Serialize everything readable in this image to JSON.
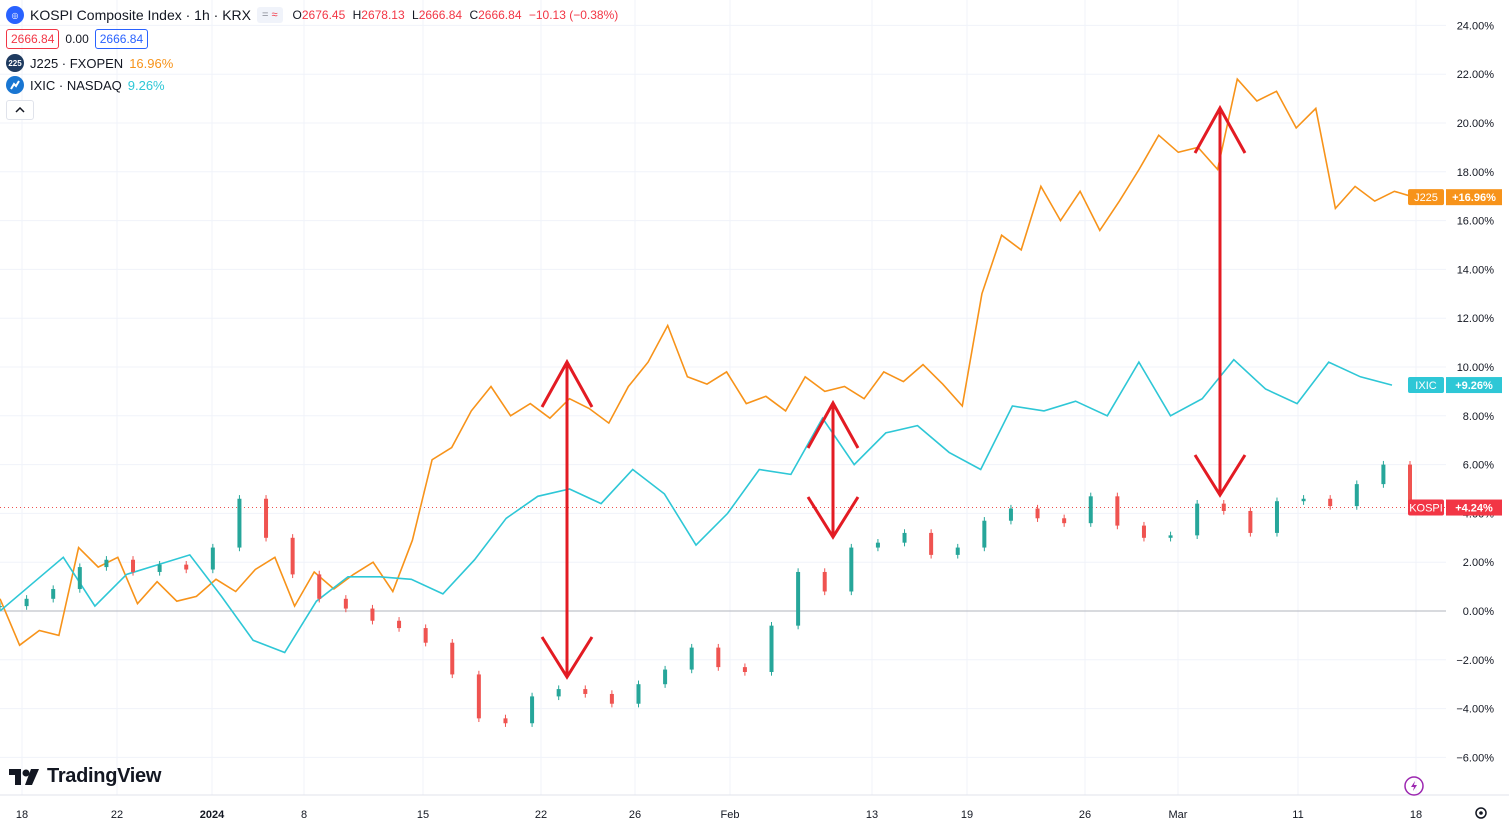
{
  "header": {
    "symbol_title": "KOSPI Composite Index · 1h · KRX",
    "ohlc": [
      {
        "k": "O",
        "v": "2676.45"
      },
      {
        "k": "H",
        "v": "2678.13"
      },
      {
        "k": "L",
        "v": "2666.84"
      },
      {
        "k": "C",
        "v": "2666.84"
      }
    ],
    "change": "−10.13 (−0.38%)",
    "bid": "2666.84",
    "spread": "0.00",
    "ask": "2666.84"
  },
  "compare": [
    {
      "badge": "225",
      "label": "J225 · FXOPEN",
      "value": "16.96%",
      "color": "#f7931a"
    },
    {
      "badge": "",
      "label": "IXIC · NASDAQ",
      "value": "9.26%",
      "color": "#2ec7d6"
    }
  ],
  "brand": "TradingView",
  "icons": {
    "collapse": "chevron-up-icon",
    "settings": "gear-icon",
    "alert": "lightning-icon",
    "logo": "tradingview-logo-icon"
  },
  "colors": {
    "kospi_up": "#26a69a",
    "kospi_down": "#ef5350",
    "j225": "#f7931a",
    "ixic": "#2ec7d6",
    "arrows": "#e31b23"
  },
  "chart_data": {
    "type": "line",
    "y_axis": {
      "unit": "%",
      "ylim": [
        -7,
        25
      ],
      "ticks": [
        "24.00%",
        "22.00%",
        "20.00%",
        "18.00%",
        "16.00%",
        "14.00%",
        "12.00%",
        "10.00%",
        "8.00%",
        "6.00%",
        "4.00%",
        "2.00%",
        "0.00%",
        "−2.00%",
        "−4.00%",
        "−6.00%"
      ]
    },
    "x_axis": {
      "ticks": [
        "18",
        "22",
        "2024",
        "8",
        "15",
        "22",
        "26",
        "Feb",
        "13",
        "19",
        "26",
        "Mar",
        "11",
        "18"
      ]
    },
    "baseline_pct": 0,
    "last_price_pct": 4.24,
    "series": [
      {
        "name": "J225",
        "label": "J225",
        "last_label": "+16.96%",
        "color": "#f7931a",
        "values": [
          0.5,
          -1.4,
          -0.8,
          -1.0,
          2.6,
          1.8,
          2.2,
          0.3,
          1.2,
          0.4,
          0.6,
          1.3,
          0.8,
          1.7,
          2.2,
          0.2,
          1.6,
          0.9,
          1.5,
          2.0,
          0.8,
          2.9,
          6.2,
          6.7,
          8.2,
          9.2,
          8.0,
          8.5,
          7.9,
          8.7,
          8.3,
          7.7,
          9.2,
          10.2,
          11.7,
          9.6,
          9.3,
          9.8,
          8.5,
          8.8,
          8.2,
          9.6,
          9.0,
          9.2,
          8.7,
          9.8,
          9.4,
          10.1,
          9.3,
          8.4,
          13.0,
          15.4,
          14.8,
          17.4,
          16.0,
          17.2,
          15.6,
          16.8,
          18.1,
          19.5,
          18.8,
          19.0,
          18.1,
          21.8,
          20.9,
          21.3,
          19.8,
          20.6,
          16.5,
          17.4,
          16.8,
          17.2,
          16.96
        ]
      },
      {
        "name": "IXIC",
        "label": "IXIC",
        "last_label": "+9.26%",
        "color": "#2ec7d6",
        "values": [
          0.0,
          1.1,
          2.2,
          0.2,
          1.5,
          1.9,
          2.3,
          0.6,
          -1.2,
          -1.7,
          0.4,
          1.4,
          1.4,
          1.3,
          0.7,
          2.1,
          3.8,
          4.7,
          5.0,
          4.4,
          5.8,
          4.8,
          2.7,
          4.0,
          5.8,
          5.6,
          7.9,
          6.0,
          7.3,
          7.6,
          6.5,
          5.8,
          8.4,
          8.2,
          8.6,
          8.0,
          10.2,
          8.0,
          8.7,
          10.3,
          9.1,
          8.5,
          10.2,
          9.6,
          9.26
        ]
      },
      {
        "name": "KOSPI",
        "label": "KOSPI",
        "last_label": "+4.24%",
        "color": "#ef5350",
        "values": [
          0.2,
          0.5,
          0.9,
          1.8,
          2.1,
          1.6,
          1.9,
          1.7,
          2.6,
          4.6,
          3.0,
          1.5,
          0.5,
          0.1,
          -0.4,
          -0.7,
          -1.3,
          -2.6,
          -4.4,
          -4.6,
          -3.5,
          -3.2,
          -3.4,
          -3.8,
          -3.0,
          -2.4,
          -1.5,
          -2.3,
          -2.5,
          -0.6,
          1.6,
          0.8,
          2.6,
          2.8,
          3.2,
          2.3,
          2.6,
          3.7,
          4.2,
          3.8,
          3.6,
          4.7,
          3.5,
          3.0,
          3.1,
          4.4,
          4.1,
          3.2,
          4.5,
          4.6,
          4.3,
          5.2,
          6.0,
          4.24
        ]
      }
    ]
  }
}
